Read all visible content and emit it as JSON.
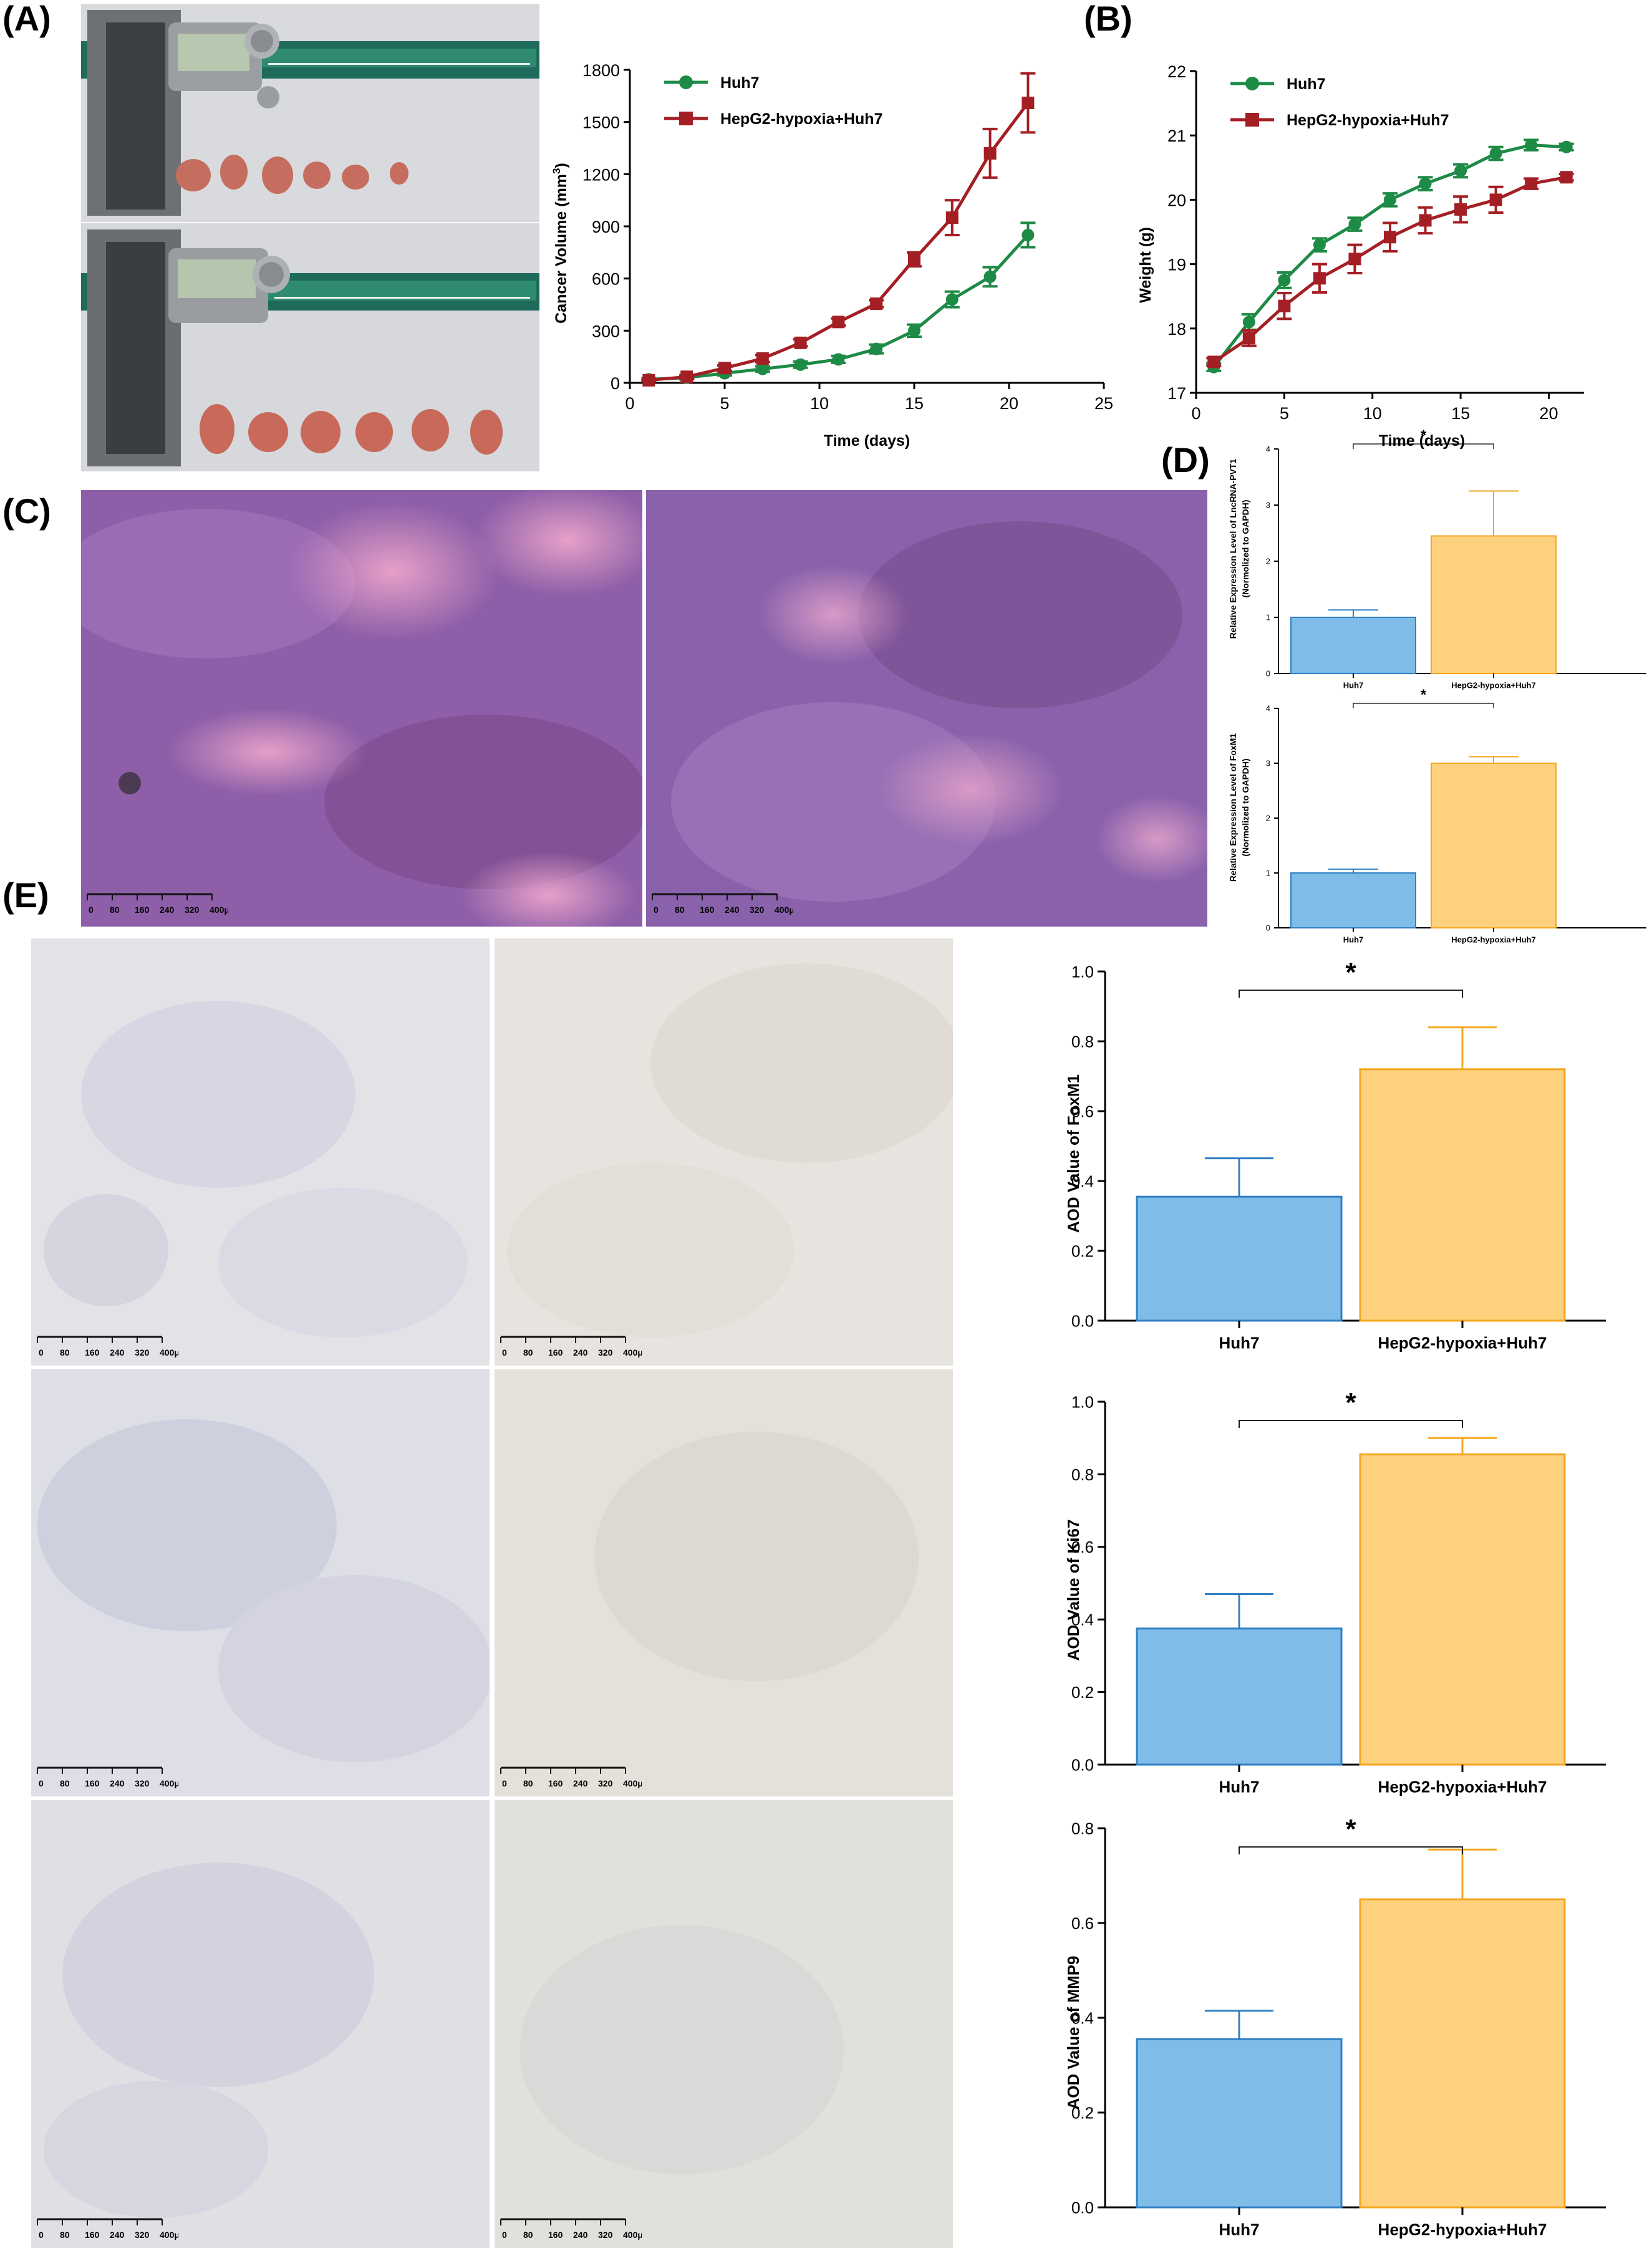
{
  "panels": {
    "a": "(A)",
    "b": "(B)",
    "c": "(C)",
    "d": "(D)",
    "e": "(E)"
  },
  "colors": {
    "huh7_line": "#1d8a45",
    "hepg2_line": "#a31f24",
    "bar_blue_fill": "#7fbde8",
    "bar_blue_edge": "#2f7fc4",
    "bar_orange_fill": "#fdd17e",
    "bar_orange_edge": "#f4a71e",
    "he_stain": "#8e5fa8",
    "ihc_bg": "#e6e4e2"
  },
  "photos": {
    "caliper_top_icon": "caliper-photo",
    "caliper_bottom_icon": "caliper-photo"
  },
  "scale_bar": {
    "ticks": [
      "0",
      "80",
      "160",
      "240",
      "320",
      "400μm"
    ]
  },
  "chart_data": [
    {
      "id": "volume",
      "type": "line",
      "xlabel": "Time (days)",
      "ylabel": "Cancer Volume (mm3)",
      "ylabel_base": "Cancer Volume (mm",
      "ylabel_sup": "3",
      "ylabel_close": ")",
      "xlim": [
        0,
        25
      ],
      "ylim": [
        0,
        1800
      ],
      "xticks": [
        0,
        5,
        10,
        15,
        20,
        25
      ],
      "yticks": [
        0,
        300,
        600,
        900,
        1200,
        1500,
        1800
      ],
      "legend_position": "top-left",
      "series": [
        {
          "name": "Huh7",
          "marker": "circle",
          "x": [
            1,
            3,
            5,
            7,
            9,
            11,
            13,
            15,
            17,
            19,
            21
          ],
          "y": [
            20,
            30,
            55,
            80,
            105,
            135,
            195,
            300,
            480,
            610,
            850
          ],
          "err": [
            8,
            10,
            12,
            15,
            18,
            20,
            25,
            35,
            45,
            55,
            70
          ]
        },
        {
          "name": "HepG2-hypoxia+Huh7",
          "marker": "square",
          "x": [
            1,
            3,
            5,
            7,
            9,
            11,
            13,
            15,
            17,
            19,
            21
          ],
          "y": [
            15,
            35,
            85,
            140,
            230,
            350,
            455,
            710,
            950,
            1320,
            1610
          ],
          "err": [
            6,
            10,
            15,
            20,
            20,
            20,
            20,
            40,
            100,
            140,
            170
          ]
        }
      ]
    },
    {
      "id": "weight",
      "type": "line",
      "xlabel": "Time (days)",
      "ylabel": "Weight (g)",
      "xlim": [
        0,
        22
      ],
      "ylim": [
        17,
        22
      ],
      "xticks": [
        0,
        5,
        10,
        15,
        20
      ],
      "yticks": [
        17,
        18,
        19,
        20,
        21,
        22
      ],
      "legend_position": "top-left",
      "series": [
        {
          "name": "Huh7",
          "marker": "circle",
          "x": [
            1,
            3,
            5,
            7,
            9,
            11,
            13,
            15,
            17,
            19,
            21
          ],
          "y": [
            17.4,
            18.1,
            18.75,
            19.3,
            19.62,
            20.0,
            20.25,
            20.45,
            20.72,
            20.85,
            20.82
          ],
          "err": [
            0.06,
            0.12,
            0.12,
            0.1,
            0.1,
            0.1,
            0.1,
            0.1,
            0.1,
            0.08,
            0.05
          ]
        },
        {
          "name": "HepG2-hypoxia+Huh7",
          "marker": "square",
          "x": [
            1,
            3,
            5,
            7,
            9,
            11,
            13,
            15,
            17,
            19,
            21
          ],
          "y": [
            17.48,
            17.85,
            18.35,
            18.78,
            19.08,
            19.42,
            19.68,
            19.85,
            20.0,
            20.25,
            20.35
          ],
          "err": [
            0.06,
            0.12,
            0.2,
            0.22,
            0.22,
            0.22,
            0.2,
            0.2,
            0.2,
            0.08,
            0.05
          ]
        }
      ]
    },
    {
      "id": "pvt1",
      "type": "bar",
      "ylabel_line1": "Relative Expression Level of  LncRNA-PVT1",
      "ylabel_line2": "(Normolized to GAPDH)",
      "categories": [
        "Huh7",
        "HepG2-hypoxia+Huh7"
      ],
      "values": [
        1.0,
        2.45
      ],
      "errors": [
        0.13,
        0.8
      ],
      "ylim": [
        0,
        4
      ],
      "yticks": [
        0,
        1,
        2,
        3,
        4
      ],
      "significance": "*"
    },
    {
      "id": "foxm1_expr",
      "type": "bar",
      "ylabel_line1": "Relative Expression Level of  FoxM1",
      "ylabel_line2": "(Normolized to GAPDH)",
      "categories": [
        "Huh7",
        "HepG2-hypoxia+Huh7"
      ],
      "values": [
        1.0,
        3.0
      ],
      "errors": [
        0.07,
        0.12
      ],
      "ylim": [
        0,
        4
      ],
      "yticks": [
        0,
        1,
        2,
        3,
        4
      ],
      "significance": "*"
    },
    {
      "id": "aod_foxm1",
      "type": "bar",
      "ylabel": "AOD Value of FoxM1",
      "categories": [
        "Huh7",
        "HepG2-hypoxia+Huh7"
      ],
      "values": [
        0.355,
        0.72
      ],
      "errors": [
        0.11,
        0.12
      ],
      "ylim": [
        0,
        1.0
      ],
      "yticks": [
        "0.0",
        "0.2",
        "0.4",
        "0.6",
        "0.8",
        "1.0"
      ],
      "significance": "*"
    },
    {
      "id": "aod_ki67",
      "type": "bar",
      "ylabel": "AOD Value of Ki67",
      "categories": [
        "Huh7",
        "HepG2-hypoxia+Huh7"
      ],
      "values": [
        0.375,
        0.855
      ],
      "errors": [
        0.095,
        0.045
      ],
      "ylim": [
        0,
        1.0
      ],
      "yticks": [
        "0.0",
        "0.2",
        "0.4",
        "0.6",
        "0.8",
        "1.0"
      ],
      "significance": "*"
    },
    {
      "id": "aod_mmp9",
      "type": "bar",
      "ylabel": "AOD Value of MMP9",
      "categories": [
        "Huh7",
        "HepG2-hypoxia+Huh7"
      ],
      "values": [
        0.355,
        0.65
      ],
      "errors": [
        0.06,
        0.105
      ],
      "ylim": [
        0,
        0.8
      ],
      "yticks": [
        "0.0",
        "0.2",
        "0.4",
        "0.6",
        "0.8"
      ],
      "significance": "*"
    }
  ]
}
